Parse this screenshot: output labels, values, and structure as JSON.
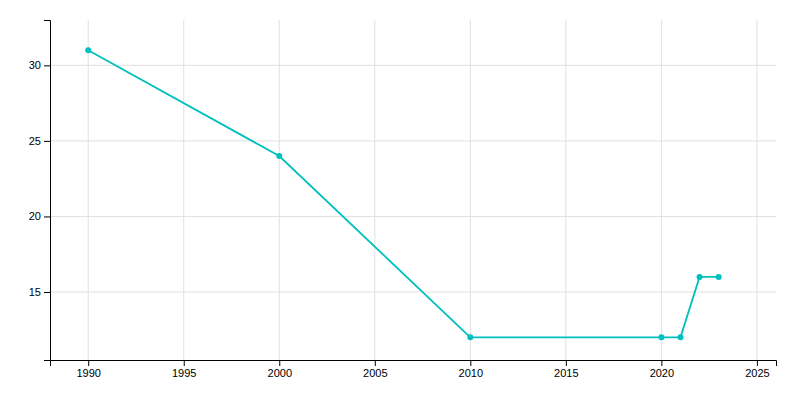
{
  "chart_data": {
    "type": "line",
    "x": [
      1990,
      2000,
      2010,
      2020,
      2021,
      2022,
      2023
    ],
    "y": [
      31,
      24,
      12,
      12,
      12,
      16,
      16
    ],
    "color": "#00BFBF",
    "marker": "circle",
    "xlim": [
      1988,
      2026
    ],
    "ylim": [
      10.5,
      33
    ],
    "xticks": [
      1990,
      1995,
      2000,
      2005,
      2010,
      2015,
      2020,
      2025
    ],
    "yticks": [
      15,
      20,
      25,
      30
    ],
    "grid": true
  }
}
